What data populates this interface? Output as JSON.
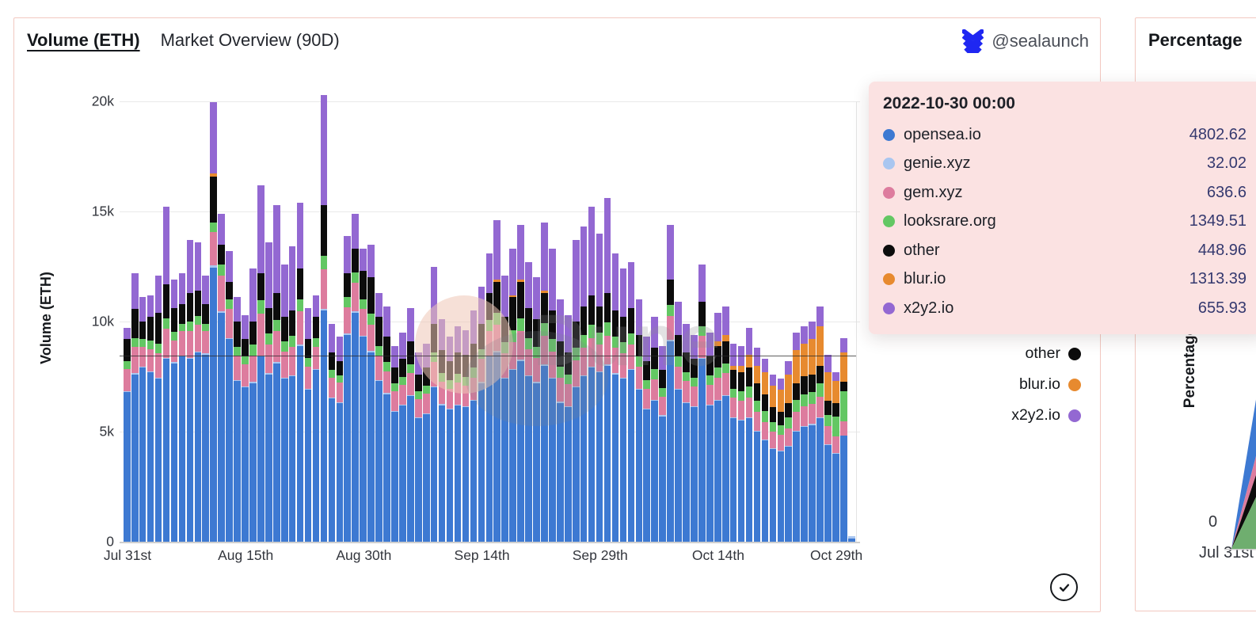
{
  "card1": {
    "title": "Volume (ETH)",
    "subtitle": "Market Overview (90D)",
    "handle": "@sealaunch",
    "watermark": "Dune",
    "y_axis_label": "Volume (ETH)",
    "y_ticks": [
      {
        "value": 0,
        "label": "0"
      },
      {
        "value": 5000,
        "label": "5k"
      },
      {
        "value": 10000,
        "label": "10k"
      },
      {
        "value": 15000,
        "label": "15k"
      },
      {
        "value": 20000,
        "label": "20k"
      }
    ],
    "x_ticks": [
      {
        "index": 0,
        "label": "Jul 31st"
      },
      {
        "index": 15,
        "label": "Aug 15th"
      },
      {
        "index": 30,
        "label": "Aug 30th"
      },
      {
        "index": 45,
        "label": "Sep 14th"
      },
      {
        "index": 60,
        "label": "Sep 29th"
      },
      {
        "index": 75,
        "label": "Oct 14th"
      },
      {
        "index": 90,
        "label": "Oct 29th"
      }
    ],
    "legend": [
      {
        "label": "opensea.io",
        "color": "#3d79d2"
      },
      {
        "label": "genie.xyz",
        "color": "#a9c6f0"
      },
      {
        "label": "gem.xyz",
        "color": "#dd7c9e"
      },
      {
        "label": "looksrare.org",
        "color": "#63c763"
      },
      {
        "label": "other",
        "color": "#0c0c0c"
      },
      {
        "label": "blur.io",
        "color": "#e78a2f"
      },
      {
        "label": "x2y2.io",
        "color": "#9368d2"
      }
    ],
    "tooltip": {
      "header": "2022-10-30 00:00",
      "rows": [
        {
          "label": "opensea.io",
          "color": "#3d79d2",
          "value": "4802.62"
        },
        {
          "label": "genie.xyz",
          "color": "#a9c6f0",
          "value": "32.02"
        },
        {
          "label": "gem.xyz",
          "color": "#dd7c9e",
          "value": "636.6"
        },
        {
          "label": "looksrare.org",
          "color": "#63c763",
          "value": "1349.51"
        },
        {
          "label": "other",
          "color": "#0c0c0c",
          "value": "448.96"
        },
        {
          "label": "blur.io",
          "color": "#e78a2f",
          "value": "1313.39"
        },
        {
          "label": "x2y2.io",
          "color": "#9368d2",
          "value": "655.93"
        }
      ]
    }
  },
  "card2": {
    "title": "Percentage",
    "y_axis_label": "Percentage",
    "y_tick": "0",
    "x_tick": "Jul 31st",
    "chart_data": {
      "type": "area",
      "note": "left sliver of 100%-stacked percentage area chart, cut off by screen edge",
      "bands": [
        {
          "name": "opensea.io",
          "color": "#3d79d2",
          "top_pct": 57.3,
          "bottom_pct": 73.5
        },
        {
          "name": "gem.xyz",
          "color": "#dd7c9e",
          "top_pct": 73.5,
          "bottom_pct": 78.9
        },
        {
          "name": "other",
          "color": "#0c0c0c",
          "top_pct": 78.9,
          "bottom_pct": 85.2
        },
        {
          "name": "looksrare.org",
          "color": "#6fae6f",
          "top_pct": 85.2,
          "bottom_pct": 100
        }
      ]
    }
  },
  "chart_data": {
    "type": "bar",
    "stacked": true,
    "unit": "ETH",
    "title": "Volume (ETH) Market Overview (90D)",
    "ylabel": "Volume (ETH)",
    "ylim": [
      0,
      20000
    ],
    "ref_line": 8470,
    "x": [
      "2022-07-31",
      "2022-08-01",
      "2022-08-02",
      "2022-08-03",
      "2022-08-04",
      "2022-08-05",
      "2022-08-06",
      "2022-08-07",
      "2022-08-08",
      "2022-08-09",
      "2022-08-10",
      "2022-08-11",
      "2022-08-12",
      "2022-08-13",
      "2022-08-14",
      "2022-08-15",
      "2022-08-16",
      "2022-08-17",
      "2022-08-18",
      "2022-08-19",
      "2022-08-20",
      "2022-08-21",
      "2022-08-22",
      "2022-08-23",
      "2022-08-24",
      "2022-08-25",
      "2022-08-26",
      "2022-08-27",
      "2022-08-28",
      "2022-08-29",
      "2022-08-30",
      "2022-08-31",
      "2022-09-01",
      "2022-09-02",
      "2022-09-03",
      "2022-09-04",
      "2022-09-05",
      "2022-09-06",
      "2022-09-07",
      "2022-09-08",
      "2022-09-09",
      "2022-09-10",
      "2022-09-11",
      "2022-09-12",
      "2022-09-13",
      "2022-09-14",
      "2022-09-15",
      "2022-09-16",
      "2022-09-17",
      "2022-09-18",
      "2022-09-19",
      "2022-09-20",
      "2022-09-21",
      "2022-09-22",
      "2022-09-23",
      "2022-09-24",
      "2022-09-25",
      "2022-09-26",
      "2022-09-27",
      "2022-09-28",
      "2022-09-29",
      "2022-09-30",
      "2022-10-01",
      "2022-10-02",
      "2022-10-03",
      "2022-10-04",
      "2022-10-05",
      "2022-10-06",
      "2022-10-07",
      "2022-10-08",
      "2022-10-09",
      "2022-10-10",
      "2022-10-11",
      "2022-10-12",
      "2022-10-13",
      "2022-10-14",
      "2022-10-15",
      "2022-10-16",
      "2022-10-17",
      "2022-10-18",
      "2022-10-19",
      "2022-10-20",
      "2022-10-21",
      "2022-10-22",
      "2022-10-23",
      "2022-10-24",
      "2022-10-25",
      "2022-10-26",
      "2022-10-27",
      "2022-10-28",
      "2022-10-29",
      "2022-10-30",
      "2022-10-31"
    ],
    "series": [
      {
        "name": "opensea.io",
        "color": "#3d79d2",
        "values": [
          6800,
          7600,
          7900,
          7700,
          7400,
          8300,
          8100,
          8400,
          8300,
          8600,
          8500,
          12450,
          10400,
          9200,
          7300,
          7000,
          7200,
          8400,
          7600,
          8100,
          7400,
          7500,
          8900,
          6900,
          7800,
          10500,
          6500,
          6300,
          9400,
          10400,
          9300,
          8600,
          7300,
          6700,
          5900,
          6200,
          6600,
          5600,
          5800,
          7000,
          6200,
          6000,
          6200,
          6100,
          6400,
          7200,
          8400,
          8600,
          7400,
          7800,
          8200,
          7500,
          7200,
          8000,
          7400,
          6300,
          6100,
          7000,
          7500,
          7900,
          7700,
          8000,
          7600,
          7400,
          7800,
          6900,
          6000,
          6400,
          5700,
          9100,
          6900,
          6300,
          6100,
          8300,
          6200,
          6400,
          6600,
          5600,
          5500,
          5600,
          5000,
          4600,
          4200,
          4100,
          4300,
          5000,
          5200,
          5300,
          5600,
          4400,
          4000,
          4802.62,
          150
        ]
      },
      {
        "name": "genie.xyz",
        "color": "#a9c6f0",
        "values": [
          50,
          60,
          50,
          50,
          50,
          60,
          50,
          50,
          60,
          50,
          50,
          100,
          80,
          60,
          50,
          50,
          50,
          60,
          50,
          60,
          50,
          50,
          60,
          50,
          50,
          80,
          50,
          40,
          60,
          70,
          60,
          60,
          50,
          50,
          40,
          40,
          50,
          40,
          40,
          50,
          50,
          40,
          40,
          40,
          50,
          50,
          60,
          60,
          50,
          50,
          60,
          50,
          50,
          60,
          50,
          50,
          40,
          50,
          50,
          60,
          50,
          60,
          50,
          50,
          50,
          50,
          40,
          40,
          40,
          60,
          50,
          40,
          40,
          50,
          40,
          50,
          50,
          40,
          40,
          50,
          40,
          40,
          40,
          40,
          40,
          50,
          50,
          50,
          50,
          40,
          40,
          32.02,
          100
        ]
      },
      {
        "name": "gem.xyz",
        "color": "#dd7c9e",
        "values": [
          1000,
          1200,
          900,
          1000,
          1100,
          1300,
          1000,
          1100,
          1200,
          1200,
          1000,
          1500,
          1600,
          1300,
          1100,
          1000,
          1200,
          1900,
          1300,
          1400,
          1200,
          1300,
          1500,
          1000,
          1000,
          1800,
          900,
          900,
          1200,
          1300,
          1200,
          1200,
          1100,
          1000,
          900,
          900,
          1000,
          850,
          900,
          1100,
          1000,
          900,
          1000,
          950,
          1000,
          1050,
          1100,
          1200,
          1100,
          1200,
          1300,
          1200,
          1100,
          1300,
          1200,
          1100,
          1000,
          1200,
          1250,
          1300,
          1200,
          1300,
          1150,
          1100,
          1100,
          1000,
          900,
          950,
          850,
          1100,
          1000,
          950,
          900,
          1000,
          900,
          1000,
          1000,
          900,
          850,
          900,
          850,
          800,
          750,
          700,
          800,
          850,
          900,
          900,
          950,
          800,
          750,
          636.6,
          0
        ]
      },
      {
        "name": "looksrare.org",
        "color": "#63c763",
        "values": [
          350,
          400,
          350,
          400,
          450,
          500,
          400,
          350,
          450,
          400,
          350,
          450,
          500,
          450,
          400,
          350,
          500,
          600,
          500,
          500,
          450,
          500,
          550,
          400,
          400,
          620,
          350,
          300,
          450,
          450,
          450,
          500,
          450,
          400,
          350,
          350,
          400,
          350,
          350,
          450,
          400,
          400,
          400,
          400,
          450,
          450,
          500,
          550,
          500,
          550,
          600,
          500,
          500,
          550,
          550,
          500,
          450,
          550,
          600,
          600,
          550,
          600,
          500,
          500,
          500,
          450,
          400,
          450,
          400,
          500,
          450,
          400,
          400,
          450,
          400,
          450,
          450,
          400,
          450,
          500,
          500,
          500,
          450,
          450,
          500,
          550,
          550,
          550,
          600,
          500,
          900,
          1349.51,
          0
        ]
      },
      {
        "name": "other",
        "color": "#0c0c0c",
        "values": [
          1000,
          1300,
          800,
          1050,
          1400,
          1540,
          1050,
          900,
          1290,
          1150,
          900,
          2100,
          900,
          800,
          1150,
          800,
          1050,
          1240,
          1150,
          1240,
          1100,
          1150,
          1390,
          850,
          950,
          2300,
          800,
          660,
          1090,
          1080,
          1290,
          1640,
          1300,
          1150,
          710,
          810,
          1050,
          760,
          810,
          1300,
          1050,
          860,
          960,
          1010,
          1100,
          1150,
          1240,
          1390,
          1150,
          1500,
          1640,
          1350,
          1250,
          1390,
          1300,
          1150,
          1010,
          1200,
          1300,
          1340,
          1200,
          1340,
          1200,
          1150,
          1150,
          1000,
          860,
          960,
          810,
          1140,
          1000,
          910,
          860,
          1100,
          860,
          1000,
          1000,
          860,
          860,
          850,
          810,
          760,
          660,
          610,
          660,
          750,
          800,
          800,
          800,
          660,
          610,
          448.96,
          0
        ]
      },
      {
        "name": "blur.io",
        "color": "#e78a2f",
        "values": [
          0,
          0,
          0,
          0,
          0,
          0,
          0,
          0,
          0,
          0,
          0,
          120,
          0,
          0,
          0,
          0,
          0,
          0,
          0,
          0,
          0,
          0,
          0,
          0,
          0,
          0,
          0,
          0,
          0,
          0,
          0,
          0,
          0,
          0,
          0,
          0,
          0,
          0,
          0,
          0,
          0,
          0,
          0,
          0,
          0,
          0,
          0,
          100,
          0,
          100,
          100,
          0,
          0,
          100,
          0,
          0,
          0,
          0,
          0,
          0,
          0,
          0,
          0,
          0,
          0,
          0,
          0,
          0,
          0,
          0,
          0,
          0,
          0,
          0,
          0,
          200,
          300,
          200,
          300,
          600,
          800,
          1000,
          1000,
          1000,
          1300,
          1500,
          1500,
          1600,
          1800,
          1300,
          1000,
          1313.39,
          0
        ]
      },
      {
        "name": "x2y2.io",
        "color": "#9368d2",
        "values": [
          500,
          1640,
          1100,
          1000,
          1700,
          3500,
          1300,
          1400,
          2400,
          2200,
          1300,
          3250,
          1420,
          1390,
          1100,
          1100,
          2400,
          4000,
          3000,
          4000,
          2400,
          2900,
          3000,
          1400,
          1000,
          5000,
          1300,
          1100,
          1700,
          1600,
          1000,
          1500,
          1100,
          1400,
          1000,
          1200,
          1500,
          1000,
          1100,
          2600,
          1400,
          1100,
          1200,
          1100,
          1500,
          1700,
          1800,
          2700,
          1900,
          2100,
          2500,
          2100,
          1900,
          3100,
          2800,
          1900,
          1700,
          3700,
          3600,
          4000,
          3300,
          4300,
          2600,
          2200,
          2100,
          1600,
          1100,
          1400,
          1100,
          2500,
          1500,
          1300,
          1100,
          1700,
          1100,
          1300,
          1300,
          1000,
          900,
          1200,
          800,
          600,
          500,
          500,
          600,
          800,
          800,
          800,
          900,
          800,
          400,
          655.93,
          0
        ]
      }
    ]
  }
}
